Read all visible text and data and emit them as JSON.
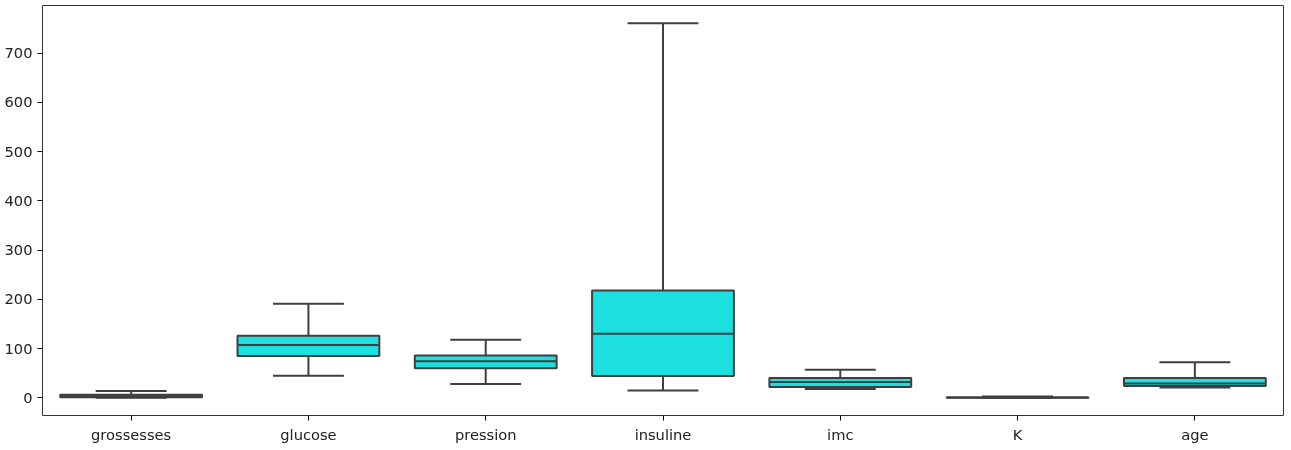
{
  "chart_data": {
    "type": "box",
    "categories": [
      "grossesses",
      "glucose",
      "pression",
      "insuline",
      "imc",
      "K",
      "age"
    ],
    "boxes": [
      {
        "low": 0,
        "q1": 1,
        "median": 3,
        "q3": 6,
        "high": 14
      },
      {
        "low": 45,
        "q1": 85,
        "median": 107,
        "q3": 126,
        "high": 191
      },
      {
        "low": 28,
        "q1": 60,
        "median": 74,
        "q3": 86,
        "high": 118
      },
      {
        "low": 15,
        "q1": 44,
        "median": 130,
        "q3": 218,
        "high": 761
      },
      {
        "low": 18,
        "q1": 22,
        "median": 32,
        "q3": 40,
        "high": 57
      },
      {
        "low": 0.08,
        "q1": 0.24,
        "median": 0.37,
        "q3": 0.63,
        "high": 2.4
      },
      {
        "low": 21,
        "q1": 24,
        "median": 29,
        "q3": 40,
        "high": 72
      }
    ],
    "color": "#1cdfdf",
    "ylim": [
      -36,
      797
    ],
    "yticks": [
      0,
      100,
      200,
      300,
      400,
      500,
      600,
      700
    ],
    "grid": false
  }
}
